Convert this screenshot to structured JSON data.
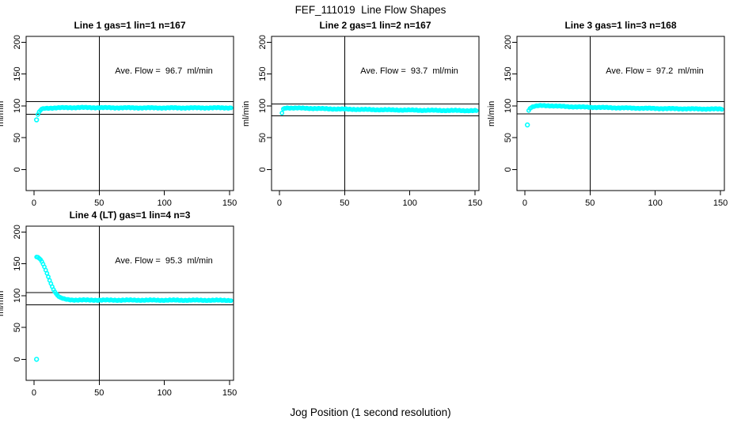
{
  "figure": {
    "title": "FEF_111019  Line Flow Shapes",
    "xlabel": "Jog Position (1 second resolution)",
    "point_color": "#00FFFF",
    "axis_color": "#000000",
    "background": "#FFFFFF"
  },
  "chart_data": [
    {
      "type": "scatter",
      "title": "Line 1 gas=1 lin=1 n=167",
      "annotation": "Ave. Flow =  96.7  ml/min",
      "ave_flow_ml_min": 96.7,
      "n": 167,
      "ylabel": "ml/min",
      "xlim": [
        -6,
        153
      ],
      "ylim": [
        -33,
        209
      ],
      "x_ticks": [
        0,
        50,
        100,
        150
      ],
      "y_ticks": [
        0,
        50,
        100,
        150,
        200
      ],
      "vline_x": 50,
      "hlines": [
        106.4,
        87.0
      ],
      "outliers": [
        [
          2,
          78
        ]
      ],
      "trend": [
        [
          3,
          86
        ],
        [
          4,
          90.5
        ],
        [
          5,
          93
        ],
        [
          6,
          95
        ],
        [
          8,
          96
        ],
        [
          12,
          96.5
        ],
        [
          25,
          97.2
        ],
        [
          40,
          97.3
        ],
        [
          60,
          97
        ],
        [
          90,
          96.8
        ],
        [
          120,
          96.8
        ],
        [
          151,
          96.9
        ]
      ],
      "grid": false,
      "legend": false
    },
    {
      "type": "scatter",
      "title": "Line 2 gas=1 lin=2 n=167",
      "annotation": "Ave. Flow =  93.7  ml/min",
      "ave_flow_ml_min": 93.7,
      "n": 167,
      "ylabel": "ml/min",
      "xlim": [
        -6,
        153
      ],
      "ylim": [
        -33,
        209
      ],
      "x_ticks": [
        0,
        50,
        100,
        150
      ],
      "y_ticks": [
        0,
        50,
        100,
        150,
        200
      ],
      "vline_x": 50,
      "hlines": [
        103.1,
        84.3
      ],
      "outliers": [],
      "trend": [
        [
          2,
          89
        ],
        [
          3,
          95
        ],
        [
          4,
          96.3
        ],
        [
          6,
          96.8
        ],
        [
          10,
          96.6
        ],
        [
          20,
          96.2
        ],
        [
          35,
          95.4
        ],
        [
          50,
          94.8
        ],
        [
          70,
          94
        ],
        [
          90,
          93.5
        ],
        [
          110,
          93
        ],
        [
          130,
          92.7
        ],
        [
          151,
          92.4
        ]
      ],
      "grid": false,
      "legend": false
    },
    {
      "type": "scatter",
      "title": "Line 3 gas=1 lin=3 n=168",
      "annotation": "Ave. Flow =  97.2  ml/min",
      "ave_flow_ml_min": 97.2,
      "n": 168,
      "ylabel": "ml/min",
      "xlim": [
        -6,
        153
      ],
      "ylim": [
        -33,
        209
      ],
      "x_ticks": [
        0,
        50,
        100,
        150
      ],
      "y_ticks": [
        0,
        50,
        100,
        150,
        200
      ],
      "vline_x": 50,
      "hlines": [
        106.9,
        87.5
      ],
      "outliers": [
        [
          2,
          70
        ]
      ],
      "trend": [
        [
          3,
          92.5
        ],
        [
          4,
          96
        ],
        [
          6,
          98.5
        ],
        [
          9,
          99.8
        ],
        [
          13,
          100.4
        ],
        [
          18,
          100.2
        ],
        [
          25,
          99.4
        ],
        [
          35,
          98.6
        ],
        [
          50,
          97.8
        ],
        [
          70,
          96.9
        ],
        [
          90,
          96.2
        ],
        [
          110,
          95.6
        ],
        [
          130,
          95.2
        ],
        [
          151,
          95
        ]
      ],
      "grid": false,
      "legend": false
    },
    {
      "type": "scatter",
      "title": "Line 4 (LT) gas=1 lin=4 n=3",
      "annotation": "Ave. Flow =  95.3  ml/min",
      "ave_flow_ml_min": 95.3,
      "n": 3,
      "ylabel": "ml/min",
      "xlim": [
        -6,
        153
      ],
      "ylim": [
        -33,
        209
      ],
      "x_ticks": [
        0,
        50,
        100,
        150
      ],
      "y_ticks": [
        0,
        50,
        100,
        150,
        200
      ],
      "vline_x": 50,
      "hlines": [
        104.8,
        85.8
      ],
      "outliers": [
        [
          2,
          0
        ]
      ],
      "trend": [
        [
          2,
          160
        ],
        [
          3,
          160
        ],
        [
          4,
          158.5
        ],
        [
          5,
          156.5
        ],
        [
          6,
          153.5
        ],
        [
          7,
          149.5
        ],
        [
          8,
          145
        ],
        [
          9,
          140
        ],
        [
          10,
          135
        ],
        [
          11,
          129.5
        ],
        [
          12,
          124
        ],
        [
          13,
          119
        ],
        [
          14,
          114
        ],
        [
          15,
          109.5
        ],
        [
          16,
          106
        ],
        [
          17,
          103
        ],
        [
          18,
          100.5
        ],
        [
          19,
          98.6
        ],
        [
          20,
          97.2
        ],
        [
          22,
          95.5
        ],
        [
          24,
          94.4
        ],
        [
          26,
          93.8
        ],
        [
          28,
          93.4
        ],
        [
          31,
          93.1
        ],
        [
          35,
          93
        ],
        [
          45,
          93
        ],
        [
          60,
          92.9
        ],
        [
          80,
          92.9
        ],
        [
          100,
          92.8
        ],
        [
          120,
          92.8
        ],
        [
          151,
          92.6
        ]
      ],
      "grid": false,
      "legend": false
    }
  ]
}
